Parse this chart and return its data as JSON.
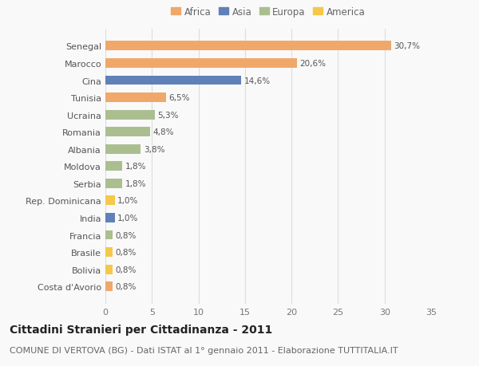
{
  "categories": [
    "Costa d'Avorio",
    "Bolivia",
    "Brasile",
    "Francia",
    "India",
    "Rep. Dominicana",
    "Serbia",
    "Moldova",
    "Albania",
    "Romania",
    "Ucraina",
    "Tunisia",
    "Cina",
    "Marocco",
    "Senegal"
  ],
  "values": [
    0.8,
    0.8,
    0.8,
    0.8,
    1.0,
    1.0,
    1.8,
    1.8,
    3.8,
    4.8,
    5.3,
    6.5,
    14.6,
    20.6,
    30.7
  ],
  "labels": [
    "0,8%",
    "0,8%",
    "0,8%",
    "0,8%",
    "1,0%",
    "1,0%",
    "1,8%",
    "1,8%",
    "3,8%",
    "4,8%",
    "5,3%",
    "6,5%",
    "14,6%",
    "20,6%",
    "30,7%"
  ],
  "colors": [
    "#F0A86A",
    "#F5C84A",
    "#F5C84A",
    "#ABBE90",
    "#6080B8",
    "#F5C84A",
    "#ABBE90",
    "#ABBE90",
    "#ABBE90",
    "#ABBE90",
    "#ABBE90",
    "#F0A86A",
    "#6080B8",
    "#F0A86A",
    "#F0A86A"
  ],
  "legend_order": [
    "Africa",
    "Asia",
    "Europa",
    "America"
  ],
  "legend_colors": {
    "Africa": "#F0A86A",
    "Asia": "#6080B8",
    "Europa": "#ABBE90",
    "America": "#F5C84A"
  },
  "xlim": [
    0,
    35
  ],
  "xticks": [
    0,
    5,
    10,
    15,
    20,
    25,
    30,
    35
  ],
  "title": "Cittadini Stranieri per Cittadinanza - 2011",
  "subtitle": "COMUNE DI VERTOVA (BG) - Dati ISTAT al 1° gennaio 2011 - Elaborazione TUTTITALIA.IT",
  "background_color": "#f9f9f9",
  "grid_color": "#dddddd",
  "bar_height": 0.55,
  "title_fontsize": 10,
  "subtitle_fontsize": 8,
  "label_fontsize": 7.5,
  "ytick_fontsize": 8,
  "xtick_fontsize": 8,
  "legend_fontsize": 8.5
}
